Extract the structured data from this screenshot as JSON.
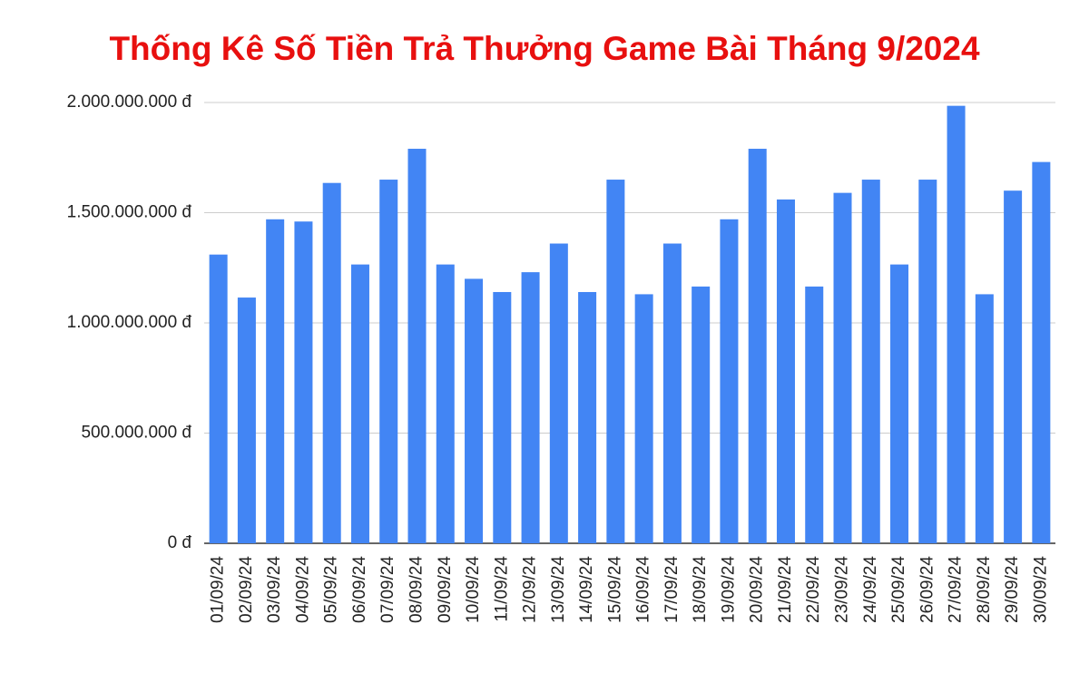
{
  "chart_data": {
    "type": "bar",
    "title": "Thống Kê Số Tiền Trả Thưởng Game Bài Tháng 9/2024",
    "categories": [
      "01/09/24",
      "02/09/24",
      "03/09/24",
      "04/09/24",
      "05/09/24",
      "06/09/24",
      "07/09/24",
      "08/09/24",
      "09/09/24",
      "10/09/24",
      "11/09/24",
      "12/09/24",
      "13/09/24",
      "14/09/24",
      "15/09/24",
      "16/09/24",
      "17/09/24",
      "18/09/24",
      "19/09/24",
      "20/09/24",
      "21/09/24",
      "22/09/24",
      "23/09/24",
      "24/09/24",
      "25/09/24",
      "26/09/24",
      "27/09/24",
      "28/09/24",
      "29/09/24",
      "30/09/24"
    ],
    "values": [
      1310000000,
      1115000000,
      1470000000,
      1460000000,
      1635000000,
      1265000000,
      1650000000,
      1790000000,
      1265000000,
      1200000000,
      1140000000,
      1230000000,
      1360000000,
      1140000000,
      1650000000,
      1130000000,
      1360000000,
      1165000000,
      1470000000,
      1790000000,
      1560000000,
      1165000000,
      1590000000,
      1650000000,
      1265000000,
      1650000000,
      1985000000,
      1130000000,
      1600000000,
      1730000000
    ],
    "color": "#4285f4",
    "ylim": [
      0,
      2000000000
    ],
    "yticks": [
      {
        "value": 0,
        "label": "0 đ"
      },
      {
        "value": 500000000,
        "label": "500.000.000 đ"
      },
      {
        "value": 1000000000,
        "label": "1.000.000.000 đ"
      },
      {
        "value": 1500000000,
        "label": "1.500.000.000 đ"
      },
      {
        "value": 2000000000,
        "label": "2.000.000.000 đ"
      }
    ],
    "grid": true
  }
}
